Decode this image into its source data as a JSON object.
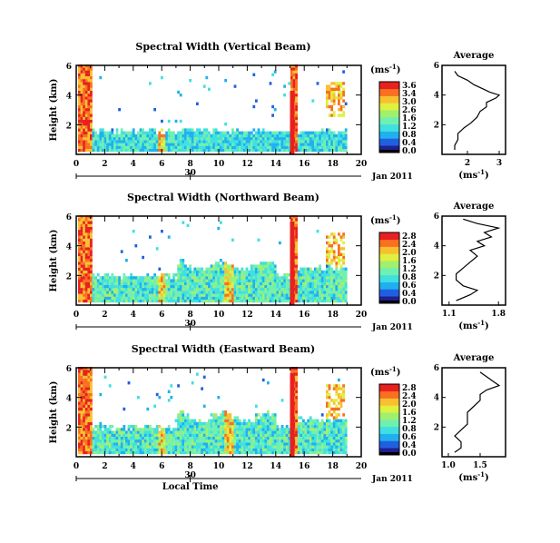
{
  "chart_data": [
    {
      "type": "heatmap",
      "title": "Spectral Width (Vertical Beam)",
      "ylabel": "Height (km)",
      "xlim": [
        0,
        20
      ],
      "ylim": [
        0,
        6
      ],
      "x_ticks": [
        "0",
        "2",
        "4",
        "6",
        "8",
        "10",
        "12",
        "14",
        "16",
        "18",
        "20"
      ],
      "y_ticks": [
        "2",
        "4",
        "6"
      ],
      "date_tick": "30",
      "date_label": "Jan 2011",
      "colorbar": {
        "unit": "(ms",
        "unit_exp": "-1",
        "unit_close": ")",
        "ticks": [
          "3.6",
          "3.4",
          "3.0",
          "2.6",
          "1.6",
          "1.2",
          "0.8",
          "0.4",
          "0.0"
        ]
      },
      "average_profile": {
        "title": "Average",
        "xlabel": "(ms",
        "xlabel_exp": "-1",
        "xlabel_close": ")",
        "x_ticks": [
          "2",
          "3"
        ],
        "y_ticks": [
          "2",
          "4",
          "6"
        ],
        "xlim": [
          1.2,
          3.2
        ],
        "width": [
          [
            0.3,
            1.6
          ],
          [
            0.6,
            1.6
          ],
          [
            1.0,
            1.7
          ],
          [
            1.4,
            1.7
          ],
          [
            1.8,
            1.9
          ],
          [
            2.1,
            2.1
          ],
          [
            2.5,
            2.3
          ],
          [
            2.9,
            2.4
          ],
          [
            3.2,
            2.6
          ],
          [
            3.5,
            2.6
          ],
          [
            3.8,
            2.9
          ],
          [
            4.0,
            3.0
          ],
          [
            4.2,
            2.7
          ],
          [
            4.4,
            2.5
          ],
          [
            4.7,
            2.2
          ],
          [
            5.0,
            2.0
          ],
          [
            5.3,
            1.7
          ],
          [
            5.6,
            1.6
          ]
        ]
      }
    },
    {
      "type": "heatmap",
      "title": "Spectral Width (Northward Beam)",
      "ylabel": "Height (km)",
      "xlim": [
        0,
        20
      ],
      "ylim": [
        0,
        6
      ],
      "x_ticks": [
        "0",
        "2",
        "4",
        "6",
        "8",
        "10",
        "12",
        "14",
        "16",
        "18",
        "20"
      ],
      "y_ticks": [
        "2",
        "4",
        "6"
      ],
      "date_tick": "30",
      "date_label": "Jan 2011",
      "colorbar": {
        "unit": "(ms",
        "unit_exp": "-1",
        "unit_close": ")",
        "ticks": [
          "2.8",
          "2.4",
          "2.0",
          "1.6",
          "1.2",
          "0.8",
          "0.6",
          "0.4",
          "0.0"
        ]
      },
      "average_profile": {
        "title": "Average",
        "xlabel": "(ms",
        "xlabel_exp": "-1",
        "xlabel_close": ")",
        "x_ticks": [
          "1.1",
          "1.8"
        ],
        "y_ticks": [
          "2",
          "4",
          "6"
        ],
        "xlim": [
          1.0,
          1.9
        ],
        "width": [
          [
            0.3,
            1.2
          ],
          [
            0.7,
            1.4
          ],
          [
            1.0,
            1.5
          ],
          [
            1.3,
            1.3
          ],
          [
            1.7,
            1.2
          ],
          [
            2.1,
            1.2
          ],
          [
            2.5,
            1.3
          ],
          [
            2.9,
            1.4
          ],
          [
            3.3,
            1.5
          ],
          [
            3.7,
            1.4
          ],
          [
            4.0,
            1.6
          ],
          [
            4.3,
            1.5
          ],
          [
            4.6,
            1.7
          ],
          [
            4.9,
            1.6
          ],
          [
            5.2,
            1.8
          ],
          [
            5.5,
            1.5
          ],
          [
            5.8,
            1.3
          ]
        ]
      }
    },
    {
      "type": "heatmap",
      "title": "Spectral Width (Eastward Beam)",
      "ylabel": "Height (km)",
      "xlabel": "Local Time",
      "xlim": [
        0,
        20
      ],
      "ylim": [
        0,
        6
      ],
      "x_ticks": [
        "0",
        "2",
        "4",
        "6",
        "8",
        "10",
        "12",
        "14",
        "16",
        "18",
        "20"
      ],
      "y_ticks": [
        "2",
        "4",
        "6"
      ],
      "date_tick": "30",
      "date_label": "Jan 2011",
      "colorbar": {
        "unit": "(ms",
        "unit_exp": "-1",
        "unit_close": ")",
        "ticks": [
          "2.8",
          "2.4",
          "2.0",
          "1.6",
          "1.2",
          "0.8",
          "0.6",
          "0.4",
          "0.0"
        ]
      },
      "average_profile": {
        "title": "Average",
        "xlabel": "(ms",
        "xlabel_exp": "-1",
        "xlabel_close": ")",
        "x_ticks": [
          "1.0",
          "1.5"
        ],
        "y_ticks": [
          "2",
          "4",
          "6"
        ],
        "xlim": [
          0.9,
          1.9
        ],
        "width": [
          [
            0.3,
            1.1
          ],
          [
            0.6,
            1.2
          ],
          [
            1.0,
            1.2
          ],
          [
            1.4,
            1.1
          ],
          [
            1.8,
            1.2
          ],
          [
            2.2,
            1.3
          ],
          [
            2.6,
            1.3
          ],
          [
            3.0,
            1.3
          ],
          [
            3.4,
            1.4
          ],
          [
            3.8,
            1.5
          ],
          [
            4.2,
            1.5
          ],
          [
            4.5,
            1.6
          ],
          [
            4.8,
            1.8
          ],
          [
            5.1,
            1.7
          ],
          [
            5.4,
            1.6
          ],
          [
            5.7,
            1.5
          ]
        ]
      }
    }
  ],
  "colors": {
    "scale": [
      "#202090",
      "#2060e0",
      "#20b0f0",
      "#40e0e0",
      "#70f0b0",
      "#a0f070",
      "#e0f040",
      "#f8c030",
      "#f87020",
      "#e82020"
    ]
  }
}
